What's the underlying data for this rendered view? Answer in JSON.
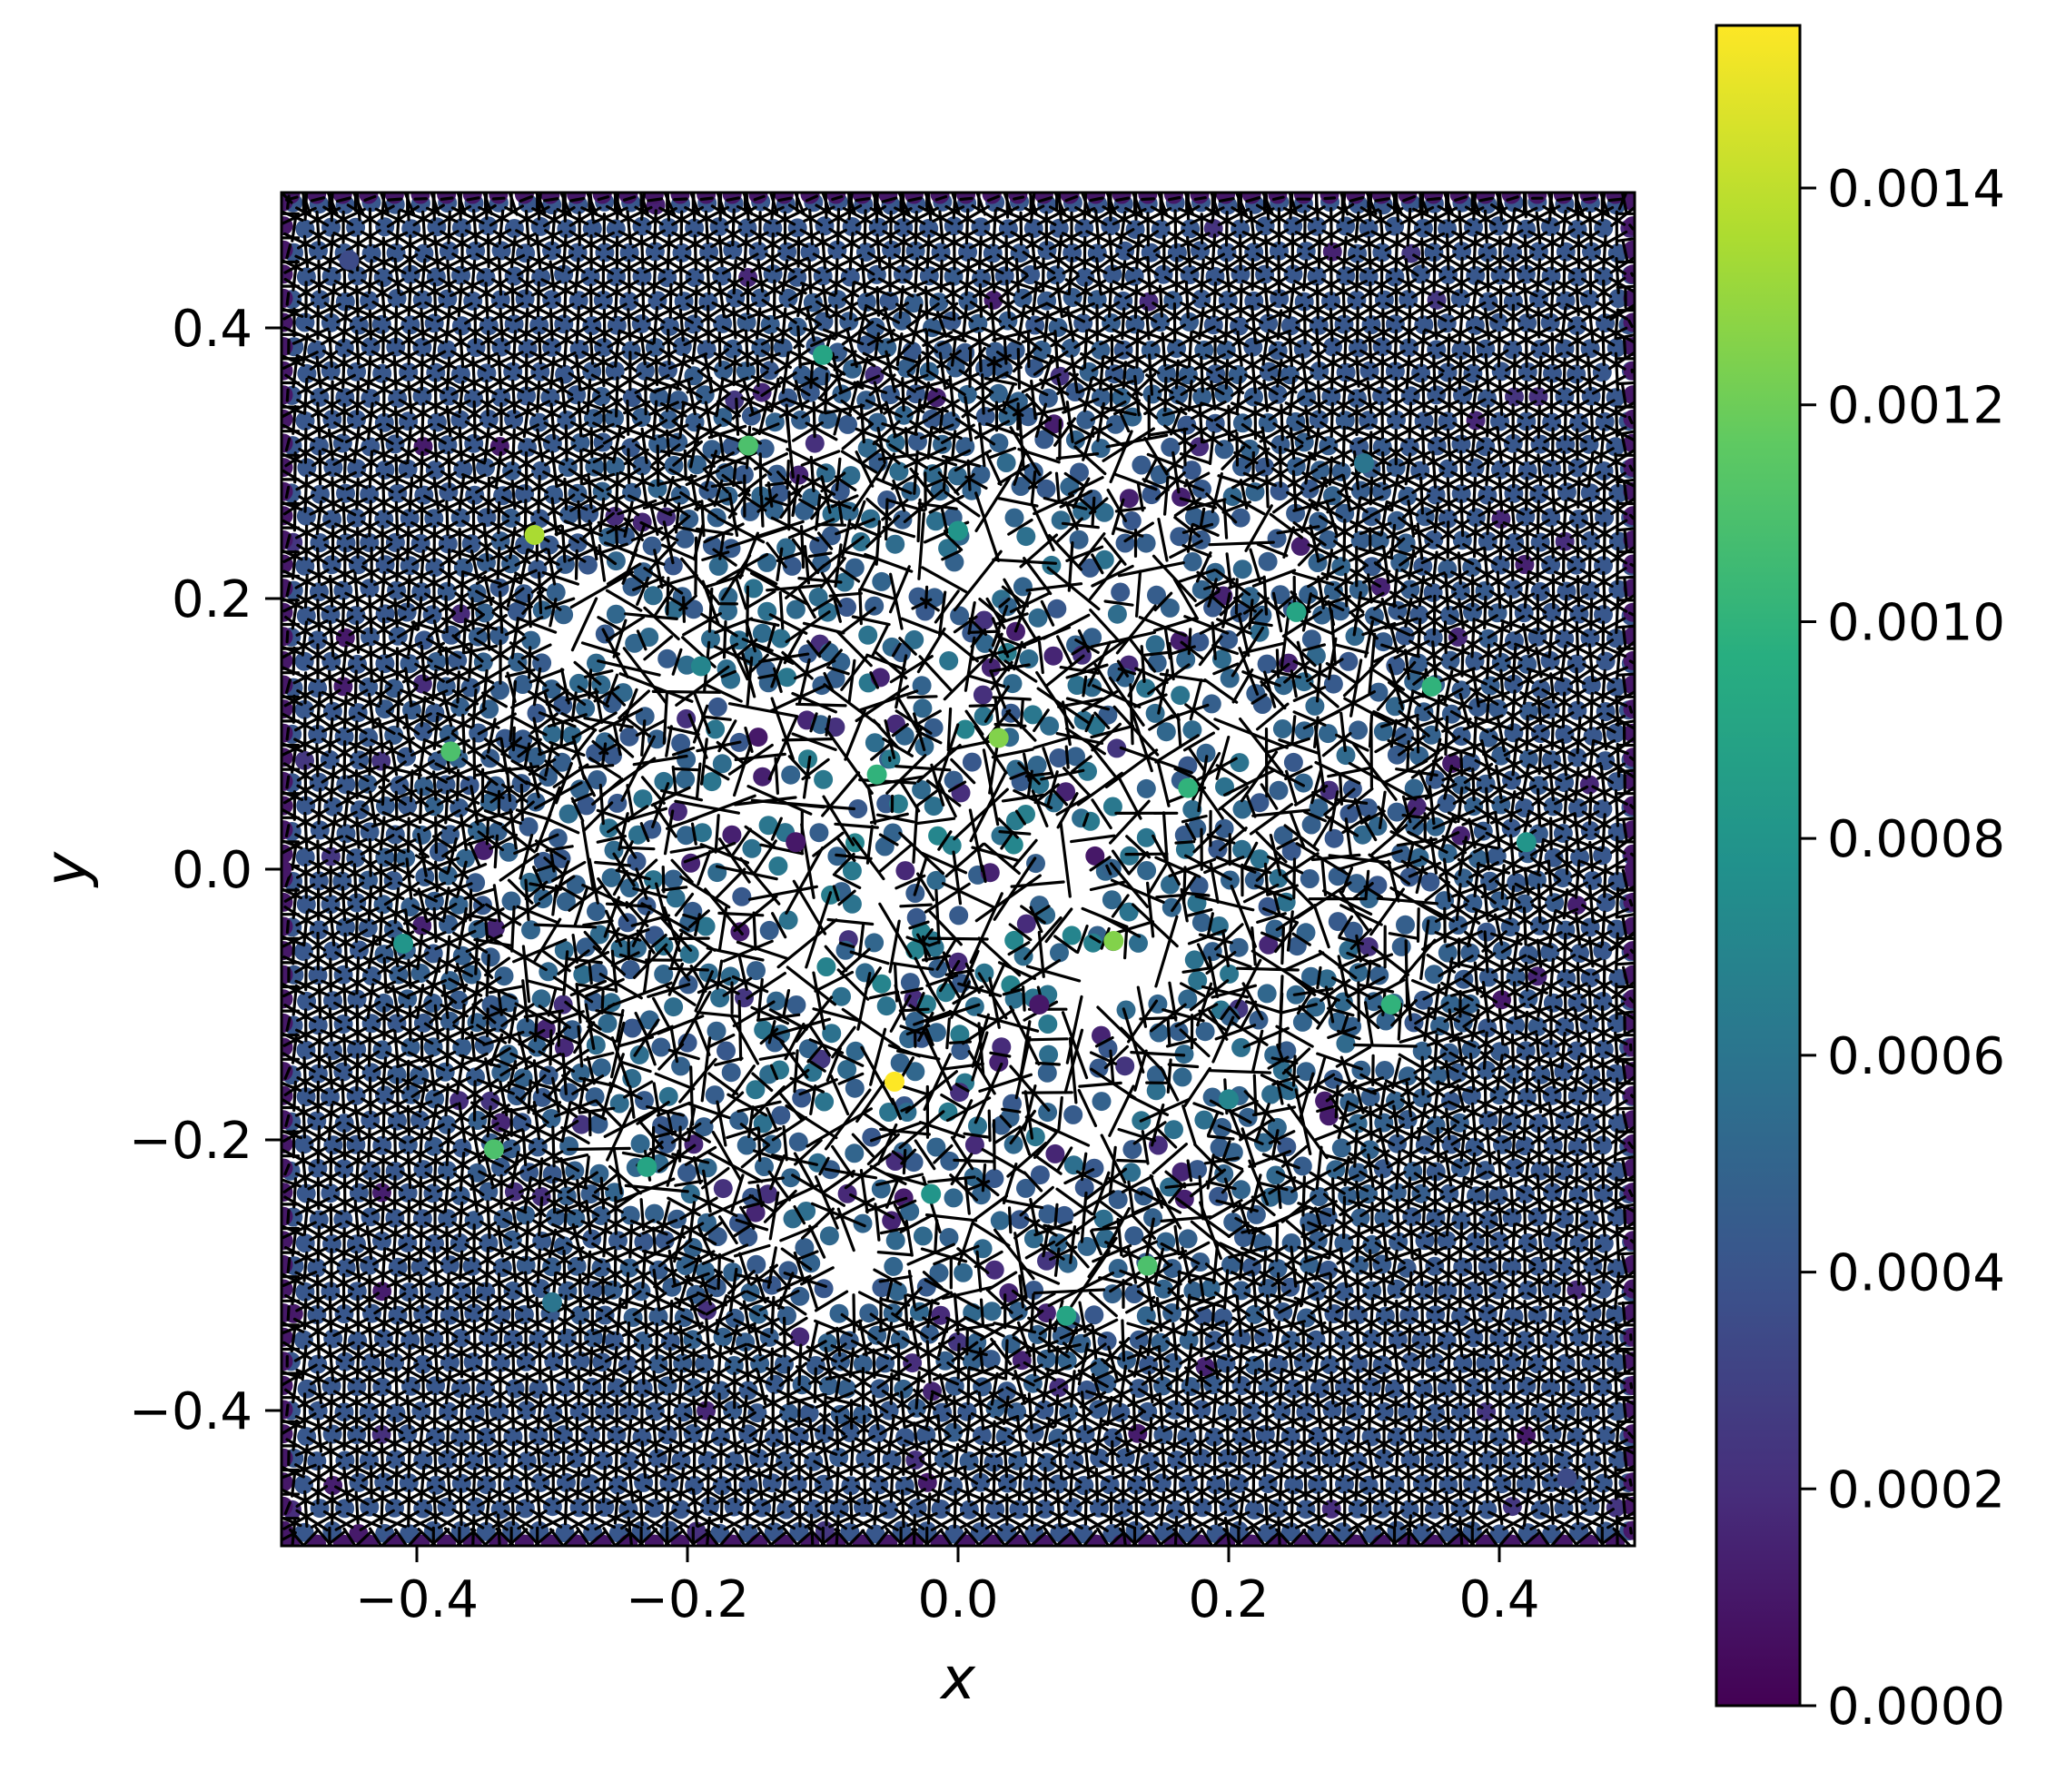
{
  "chart_data": {
    "type": "scatter",
    "title": "",
    "xlabel": "x",
    "ylabel": "y",
    "xlim": [
      -0.5,
      0.5
    ],
    "ylim": [
      -0.5,
      0.5
    ],
    "x_ticks": [
      -0.4,
      -0.2,
      0.0,
      0.2,
      0.4
    ],
    "y_ticks": [
      -0.4,
      -0.2,
      0.0,
      0.2,
      0.4
    ],
    "x_tick_labels": [
      "−0.4",
      "−0.2",
      "0.0",
      "0.2",
      "0.4"
    ],
    "y_tick_labels": [
      "−0.4",
      "−0.2",
      "0.0",
      "0.2",
      "0.4"
    ],
    "grid": false,
    "overlay": "voronoi tessellation of points",
    "colormap": "viridis",
    "colorbar": {
      "range": [
        0.0,
        0.00155
      ],
      "ticks": [
        0.0,
        0.0002,
        0.0004,
        0.0006,
        0.0008,
        0.001,
        0.0012,
        0.0014
      ],
      "tick_labels": [
        "0.0000",
        "0.0002",
        "0.0004",
        "0.0006",
        "0.0008",
        "0.0010",
        "0.0012",
        "0.0014"
      ]
    },
    "points": [
      {
        "x": -0.047,
        "y": -0.157,
        "value": 0.00155
      },
      {
        "x": 0.03,
        "y": 0.097,
        "value": 0.00125
      },
      {
        "x": 0.115,
        "y": -0.053,
        "value": 0.00125
      },
      {
        "x": -0.313,
        "y": 0.247,
        "value": 0.00135
      },
      {
        "x": -0.155,
        "y": 0.313,
        "value": 0.0011
      },
      {
        "x": -0.375,
        "y": 0.087,
        "value": 0.0011
      },
      {
        "x": -0.343,
        "y": -0.207,
        "value": 0.0011
      },
      {
        "x": 0.14,
        "y": -0.293,
        "value": 0.0011
      },
      {
        "x": 0.35,
        "y": 0.135,
        "value": 0.001
      },
      {
        "x": 0.32,
        "y": -0.1,
        "value": 0.001
      },
      {
        "x": -0.06,
        "y": 0.07,
        "value": 0.001
      },
      {
        "x": 0.17,
        "y": 0.06,
        "value": 0.001
      },
      {
        "x": -0.23,
        "y": -0.22,
        "value": 0.0009
      },
      {
        "x": 0.25,
        "y": 0.19,
        "value": 0.0009
      },
      {
        "x": -0.1,
        "y": 0.38,
        "value": 0.0009
      },
      {
        "x": 0.08,
        "y": -0.33,
        "value": 0.0009
      },
      {
        "x": -0.41,
        "y": -0.055,
        "value": 0.0008
      },
      {
        "x": 0.42,
        "y": 0.02,
        "value": 0.0008
      },
      {
        "x": 0.0,
        "y": 0.25,
        "value": 0.0008
      },
      {
        "x": -0.02,
        "y": -0.24,
        "value": 0.0008
      },
      {
        "x": -0.19,
        "y": 0.15,
        "value": 0.0007
      },
      {
        "x": 0.2,
        "y": -0.17,
        "value": 0.0007
      },
      {
        "x": 0.3,
        "y": 0.3,
        "value": 0.0006
      },
      {
        "x": -0.3,
        "y": -0.32,
        "value": 0.0006
      },
      {
        "x": -0.45,
        "y": 0.45,
        "value": 0.00035
      },
      {
        "x": 0.45,
        "y": -0.45,
        "value": 0.00035
      },
      {
        "x": -0.12,
        "y": 0.02,
        "value": 0.0001
      },
      {
        "x": 0.06,
        "y": -0.1,
        "value": 0.0001
      },
      {
        "x": -0.5,
        "y": 0.0,
        "value": 0.0001
      },
      {
        "x": 0.5,
        "y": 0.0,
        "value": 0.0001
      }
    ]
  }
}
